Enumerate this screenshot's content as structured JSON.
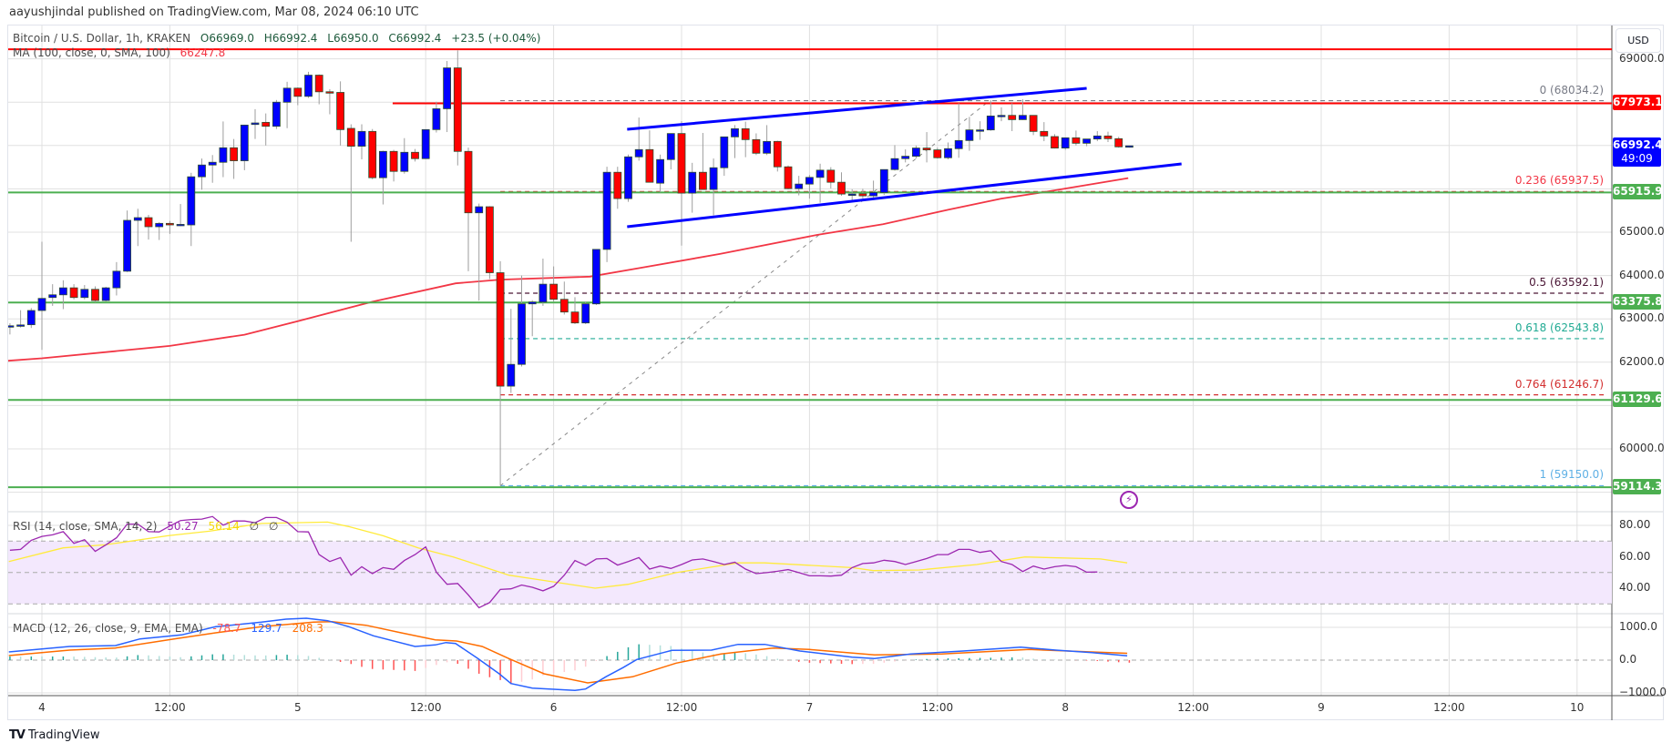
{
  "header": {
    "published": "aayushjindal published on TradingView.com, Mar 08, 2024 06:10 UTC"
  },
  "legend": {
    "symbol": "Bitcoin / U.S. Dollar, 1h, KRAKEN",
    "open": "O66969.0",
    "high": "H66992.4",
    "low": "L66950.0",
    "close": "C66992.4",
    "change": "+23.5 (+0.04%)",
    "ma_label": "MA (100, close, 0, SMA, 100)",
    "ma_value": "66247.8"
  },
  "rsi_legend": {
    "label": "RSI (14, close, SMA, 14, 2)",
    "rsi": "50.27",
    "sma": "56.14",
    "extra1": "∅",
    "extra2": "∅"
  },
  "macd_legend": {
    "label": "MACD (12, 26, close, 9, EMA, EMA)",
    "hist": "-78.7",
    "macd": "129.7",
    "signal": "208.3"
  },
  "price_axis": {
    "currency": "USD",
    "ticks": [
      {
        "price": 69000,
        "label": "69000.0"
      },
      {
        "price": 65000,
        "label": "65000.0"
      },
      {
        "price": 64000,
        "label": "64000.0"
      },
      {
        "price": 63000,
        "label": "63000.0"
      },
      {
        "price": 62000,
        "label": "62000.0"
      },
      {
        "price": 60000,
        "label": "60000.0"
      }
    ],
    "tags": [
      {
        "price": 67973.1,
        "label": "67973.1",
        "color": "#ff0000"
      },
      {
        "price": 66992.4,
        "label": "66992.4",
        "sub": "49:09",
        "color": "#0000ff"
      },
      {
        "price": 65915.9,
        "label": "65915.9",
        "color": "#4caf50"
      },
      {
        "price": 63375.8,
        "label": "63375.8",
        "color": "#4caf50"
      },
      {
        "price": 61129.6,
        "label": "61129.6",
        "color": "#4caf50"
      },
      {
        "price": 59114.3,
        "label": "59114.3",
        "color": "#4caf50"
      }
    ]
  },
  "rsi_axis": {
    "ticks": [
      {
        "value": 80,
        "label": "80.00"
      },
      {
        "value": 60,
        "label": "60.00"
      },
      {
        "value": 40,
        "label": "40.00"
      }
    ]
  },
  "macd_axis": {
    "ticks": [
      {
        "value": 1000,
        "label": "1000.0"
      },
      {
        "value": 0,
        "label": "0.0"
      },
      {
        "value": -1000,
        "label": "−1000.0"
      }
    ]
  },
  "time_axis": {
    "labels": [
      {
        "hour": 0,
        "label": "4"
      },
      {
        "hour": 12,
        "label": "12:00"
      },
      {
        "hour": 24,
        "label": "5"
      },
      {
        "hour": 36,
        "label": "12:00"
      },
      {
        "hour": 48,
        "label": "6"
      },
      {
        "hour": 60,
        "label": "12:00"
      },
      {
        "hour": 72,
        "label": "7"
      },
      {
        "hour": 84,
        "label": "12:00"
      },
      {
        "hour": 96,
        "label": "8"
      },
      {
        "hour": 108,
        "label": "12:00"
      },
      {
        "hour": 120,
        "label": "9"
      },
      {
        "hour": 132,
        "label": "12:00"
      },
      {
        "hour": 144,
        "label": "10"
      }
    ]
  },
  "footer": {
    "brand": "TradingView"
  },
  "colors": {
    "up": "#0000ff",
    "down": "#ff0000",
    "ma": "#f23645",
    "support": "#4caf50",
    "resistance": "#ff0000",
    "channel": "#0000ff",
    "rsi": "#9c27b0",
    "rsi_sma": "#ffeb3b",
    "macd": "#2962ff",
    "signal": "#ff6d00"
  },
  "chart_data": {
    "type": "candlestick",
    "title": "Bitcoin / U.S. Dollar, 1h, KRAKEN",
    "x_unit": "hours from Mar 4 00:00",
    "first_hour": -3,
    "ylim": [
      58900,
      69400
    ],
    "candles_ohlc": [
      [
        62830,
        62900,
        62640,
        62840
      ],
      [
        62850,
        63200,
        62800,
        62860
      ],
      [
        62865,
        63250,
        62790,
        63193
      ],
      [
        63193,
        64780,
        62285,
        63472
      ],
      [
        63493,
        63800,
        63300,
        63555
      ],
      [
        63555,
        63890,
        63225,
        63716
      ],
      [
        63716,
        63800,
        63450,
        63493
      ],
      [
        63493,
        63780,
        63450,
        63681
      ],
      [
        63681,
        63750,
        63380,
        63423
      ],
      [
        63423,
        63740,
        63400,
        63716
      ],
      [
        63716,
        64310,
        63540,
        64100
      ],
      [
        64100,
        65500,
        64080,
        65273
      ],
      [
        65273,
        65540,
        64680,
        65335
      ],
      [
        65335,
        65400,
        64830,
        65126
      ],
      [
        65126,
        65230,
        64820,
        65203
      ],
      [
        65203,
        65260,
        64960,
        65168
      ],
      [
        65168,
        65650,
        65140,
        65180
      ],
      [
        65168,
        66370,
        64680,
        66278
      ],
      [
        66278,
        66700,
        65980,
        66550
      ],
      [
        66550,
        66780,
        66140,
        66613
      ],
      [
        66613,
        67555,
        66270,
        66948
      ],
      [
        66948,
        67150,
        66230,
        66648
      ],
      [
        66648,
        67480,
        66430,
        67471
      ],
      [
        67485,
        67840,
        67150,
        67520
      ],
      [
        67534,
        67740,
        67000,
        67443
      ],
      [
        67443,
        68050,
        67380,
        67999
      ],
      [
        67999,
        68470,
        67400,
        68323
      ],
      [
        68323,
        68340,
        67930,
        68134
      ],
      [
        68134,
        68700,
        68100,
        68623
      ],
      [
        68623,
        68640,
        67950,
        68239
      ],
      [
        68240,
        68300,
        67720,
        68225
      ],
      [
        68225,
        68480,
        67000,
        67367
      ],
      [
        67395,
        67490,
        64780,
        66983
      ],
      [
        66983,
        67490,
        66680,
        67325
      ],
      [
        67325,
        67380,
        66220,
        66257
      ],
      [
        66257,
        66880,
        65640,
        66864
      ],
      [
        66864,
        66900,
        66170,
        66403
      ],
      [
        66403,
        67170,
        66350,
        66843
      ],
      [
        66843,
        66920,
        66630,
        66697
      ],
      [
        66697,
        67370,
        66690,
        67367
      ],
      [
        67367,
        68010,
        67300,
        67848
      ],
      [
        67848,
        68950,
        67310,
        68791
      ],
      [
        68791,
        69195,
        66540,
        66864
      ],
      [
        66864,
        66950,
        64100,
        65447
      ],
      [
        65447,
        65660,
        63420,
        65587
      ],
      [
        65587,
        65600,
        63920,
        64065
      ],
      [
        64065,
        64330,
        59150,
        61448
      ],
      [
        61448,
        63230,
        61290,
        61950
      ],
      [
        61950,
        64000,
        61900,
        63346
      ],
      [
        63346,
        63430,
        62600,
        63388
      ],
      [
        63388,
        64390,
        63300,
        63800
      ],
      [
        63800,
        64210,
        63400,
        63451
      ],
      [
        63451,
        63860,
        63100,
        63158
      ],
      [
        63158,
        63500,
        62880,
        62906
      ],
      [
        62906,
        63400,
        62880,
        63346
      ],
      [
        63346,
        64600,
        63320,
        64603
      ],
      [
        64603,
        66510,
        64310,
        66382
      ],
      [
        66382,
        66510,
        65540,
        65775
      ],
      [
        65775,
        66790,
        65700,
        66738
      ],
      [
        66738,
        67645,
        66650,
        66906
      ],
      [
        66906,
        67350,
        66150,
        66152
      ],
      [
        66131,
        66790,
        65920,
        66676
      ],
      [
        66676,
        67280,
        66450,
        67276
      ],
      [
        67276,
        67560,
        64690,
        65901
      ],
      [
        65901,
        66600,
        65450,
        66382
      ],
      [
        66382,
        67290,
        66000,
        65985
      ],
      [
        65985,
        66700,
        65390,
        66487
      ],
      [
        66487,
        67200,
        66300,
        67199
      ],
      [
        67199,
        67470,
        66710,
        67387
      ],
      [
        67387,
        67550,
        66730,
        67136
      ],
      [
        67136,
        67280,
        66780,
        66822
      ],
      [
        66822,
        67470,
        66780,
        67094
      ],
      [
        67094,
        67110,
        66400,
        66508
      ],
      [
        66508,
        66540,
        65990,
        66005
      ],
      [
        66005,
        66300,
        65850,
        66110
      ],
      [
        66110,
        66320,
        65775,
        66264
      ],
      [
        66264,
        66580,
        65680,
        66431
      ],
      [
        66431,
        66500,
        66010,
        66152
      ],
      [
        66152,
        66380,
        65840,
        65880
      ],
      [
        65880,
        65990,
        65740,
        65880
      ],
      [
        65887,
        66000,
        65780,
        65838
      ],
      [
        65838,
        66190,
        65780,
        65915
      ],
      [
        65915,
        66445,
        65860,
        66445
      ],
      [
        66445,
        67010,
        66420,
        66697
      ],
      [
        66697,
        66910,
        66610,
        66752
      ],
      [
        66752,
        67000,
        66700,
        66941
      ],
      [
        66941,
        67310,
        66610,
        66899
      ],
      [
        66899,
        66950,
        66700,
        66718
      ],
      [
        66718,
        67070,
        66680,
        66927
      ],
      [
        66927,
        67974,
        66717,
        67115
      ],
      [
        67115,
        67660,
        66878,
        67360
      ],
      [
        67360,
        67560,
        67130,
        67360
      ],
      [
        67360,
        68044,
        67340,
        67681
      ],
      [
        67681,
        67880,
        67560,
        67695
      ],
      [
        67695,
        67975,
        67332,
        67597
      ],
      [
        67597,
        68065,
        67590,
        67695
      ],
      [
        67695,
        67700,
        67240,
        67325
      ],
      [
        67325,
        67540,
        67100,
        67220
      ],
      [
        67206,
        67260,
        66930,
        66941
      ],
      [
        66941,
        67180,
        66900,
        67178
      ],
      [
        67178,
        67345,
        67000,
        67052
      ],
      [
        67052,
        67150,
        66983,
        67150
      ],
      [
        67150,
        67332,
        67100,
        67220
      ],
      [
        67220,
        67320,
        67080,
        67157
      ],
      [
        67157,
        67200,
        66950,
        66969
      ],
      [
        66969,
        66992.4,
        66950,
        66992.4
      ]
    ],
    "ma100": [
      [
        -3.9,
        62020
      ],
      [
        0,
        62090
      ],
      [
        12,
        62375
      ],
      [
        19,
        62634
      ],
      [
        24,
        62948
      ],
      [
        31,
        63395
      ],
      [
        38.8,
        63820
      ],
      [
        43,
        63905
      ],
      [
        51.4,
        63975
      ],
      [
        56,
        64170
      ],
      [
        63.6,
        64498
      ],
      [
        72.7,
        64937
      ],
      [
        78.9,
        65182
      ],
      [
        85,
        65517
      ],
      [
        90,
        65775
      ],
      [
        93.8,
        65915
      ],
      [
        101.9,
        66248
      ]
    ],
    "resistance_lines": [
      {
        "price": 69220,
        "from_hour": -4
      },
      {
        "price": 67973.1,
        "from_hour": 32.9
      }
    ],
    "support_lines": [
      65915.9,
      63375.8,
      61129.6,
      59114.3
    ],
    "channel": {
      "upper": [
        [
          54.9,
          67374
        ],
        [
          98,
          68319
        ]
      ],
      "lower": [
        [
          54.9,
          65126
        ],
        [
          106.9,
          66576
        ]
      ]
    },
    "fibonacci": {
      "from": [
        43,
        59150
      ],
      "to": [
        88.9,
        68034.2
      ],
      "levels": [
        {
          "ratio": "0",
          "price": 68034.2,
          "label": "0 (68034.2)",
          "color": "#787b86"
        },
        {
          "ratio": "0.236",
          "price": 65937.5,
          "label": "0.236 (65937.5)",
          "color": "#f23645"
        },
        {
          "ratio": "0.5",
          "price": 63592.1,
          "label": "0.5 (63592.1)",
          "color": "#4a1635"
        },
        {
          "ratio": "0.618",
          "price": 62543.8,
          "label": "0.618 (62543.8)",
          "color": "#22ab94"
        },
        {
          "ratio": "0.764",
          "price": 61246.7,
          "label": "0.764 (61246.7)",
          "color": "#d32f2f"
        },
        {
          "ratio": "1",
          "price": 59150.0,
          "label": "1 (59150.0)",
          "color": "#5eb0e5"
        }
      ]
    },
    "rsi": {
      "start_hour": -3,
      "ylim": [
        20,
        90
      ],
      "band": [
        30,
        70
      ],
      "values": [
        64.2,
        64.7,
        70.5,
        73,
        74,
        76,
        68.6,
        70.9,
        63.4,
        67.6,
        72.1,
        80.8,
        80.8,
        76,
        75.8,
        79.6,
        83.1,
        83.7,
        84,
        85.6,
        80.2,
        82.8,
        82.8,
        81.7,
        85,
        85,
        82,
        76,
        75.8,
        61.4,
        57,
        59.5,
        48.3,
        53.7,
        49.3,
        53.1,
        52,
        57.6,
        61.4,
        66.3,
        50.2,
        42.5,
        43,
        35.7,
        27.6,
        30.9,
        39.2,
        39.6,
        42,
        40.6,
        38.3,
        41.2,
        48.3,
        57.6,
        54.5,
        58.6,
        58.9,
        54.7,
        57,
        59.5,
        52.2,
        54.1,
        52.6,
        55.1,
        58,
        58.6,
        57,
        55.1,
        56.5,
        52.2,
        49.3,
        49.9,
        50.8,
        51.8,
        49.9,
        47.9,
        47.9,
        47.7,
        48.3,
        53.1,
        55.7,
        56.1,
        57.8,
        57,
        55.1,
        57,
        58.9,
        61.4,
        61.4,
        64.7,
        64.7,
        62.8,
        63.9,
        57,
        55.1,
        50.6,
        54.1,
        52.2,
        53.7,
        54.5,
        53.7,
        50.2,
        50.3
      ]
    },
    "rsi_sma": [
      [
        -3.1,
        57
      ],
      [
        2,
        65.7
      ],
      [
        5.9,
        67.6
      ],
      [
        11.8,
        73.4
      ],
      [
        15.7,
        76.3
      ],
      [
        20.6,
        81.2
      ],
      [
        26.8,
        82.1
      ],
      [
        28.8,
        79.2
      ],
      [
        32,
        73.4
      ],
      [
        35.3,
        65.7
      ],
      [
        38.6,
        59.9
      ],
      [
        43.8,
        48.3
      ],
      [
        51.9,
        40
      ],
      [
        55,
        42.5
      ],
      [
        59.5,
        49.9
      ],
      [
        65.3,
        56.1
      ],
      [
        67.8,
        56.1
      ],
      [
        76,
        53.1
      ],
      [
        78,
        51.2
      ],
      [
        82.3,
        51.6
      ],
      [
        87.7,
        55.1
      ],
      [
        92.2,
        59.9
      ],
      [
        99.3,
        58.6
      ],
      [
        101.8,
        56.1
      ]
    ],
    "macd": [
      [
        -3.1,
        250
      ],
      [
        2.6,
        417
      ],
      [
        6.9,
        444
      ],
      [
        9.2,
        648
      ],
      [
        13.1,
        769
      ],
      [
        16.3,
        1019
      ],
      [
        20.6,
        1157
      ],
      [
        22.9,
        1250
      ],
      [
        24.8,
        1278
      ],
      [
        26.8,
        1204
      ],
      [
        28.8,
        1019
      ],
      [
        31.1,
        741
      ],
      [
        35,
        417
      ],
      [
        36.9,
        463
      ],
      [
        37.9,
        537
      ],
      [
        38.8,
        509
      ],
      [
        40.9,
        46
      ],
      [
        42.9,
        -417
      ],
      [
        44,
        -713
      ],
      [
        46,
        -852
      ],
      [
        50,
        -926
      ],
      [
        51,
        -880
      ],
      [
        52.9,
        -509
      ],
      [
        54.5,
        -231
      ],
      [
        55.8,
        19
      ],
      [
        58.3,
        231
      ],
      [
        59.1,
        296
      ],
      [
        62.8,
        306
      ],
      [
        65.3,
        481
      ],
      [
        67.8,
        481
      ],
      [
        71.1,
        278
      ],
      [
        76,
        93
      ],
      [
        78.1,
        46
      ],
      [
        81.5,
        185
      ],
      [
        86.4,
        278
      ],
      [
        91.8,
        398
      ],
      [
        95.1,
        306
      ],
      [
        98.5,
        231
      ],
      [
        101.8,
        130
      ]
    ],
    "macd_signal": [
      [
        -3.1,
        139
      ],
      [
        2.6,
        306
      ],
      [
        6.9,
        370
      ],
      [
        12.4,
        648
      ],
      [
        16.3,
        833
      ],
      [
        20.6,
        1019
      ],
      [
        25.5,
        1157
      ],
      [
        27.2,
        1176
      ],
      [
        30.4,
        1065
      ],
      [
        33.7,
        833
      ],
      [
        36.9,
        620
      ],
      [
        38.9,
        583
      ],
      [
        41.3,
        417
      ],
      [
        43.8,
        46
      ],
      [
        47.1,
        -417
      ],
      [
        51.2,
        -694
      ],
      [
        55.4,
        -509
      ],
      [
        59.5,
        -93
      ],
      [
        63.7,
        185
      ],
      [
        68.6,
        370
      ],
      [
        72,
        324
      ],
      [
        78.1,
        157
      ],
      [
        84.4,
        185
      ],
      [
        92.6,
        324
      ],
      [
        101.8,
        208
      ]
    ],
    "macd_ylim": [
      -1100,
      1400
    ]
  }
}
